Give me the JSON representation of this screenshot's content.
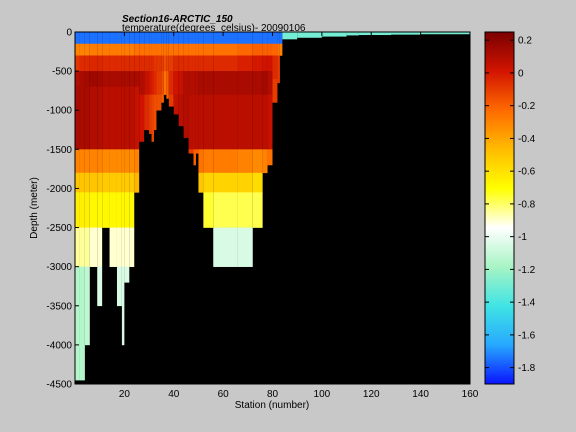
{
  "chart_data": {
    "type": "heatmap",
    "title": "Section16-ARCTIC_150",
    "subtitle": "temperature(degrees_celsius)- 20090106",
    "xlabel": "Station (number)",
    "ylabel": "Depth (meter)",
    "xlim": [
      0,
      160
    ],
    "ylim": [
      -4500,
      0
    ],
    "x_ticks": [
      20,
      40,
      60,
      80,
      100,
      120,
      140,
      160
    ],
    "y_ticks": [
      0,
      -500,
      -1000,
      -1500,
      -2000,
      -2500,
      -3000,
      -3500,
      -4000,
      -4500
    ],
    "colorbar": {
      "clim": [
        -1.9,
        0.25
      ],
      "ticks": [
        0.2,
        0,
        -0.2,
        -0.4,
        -0.6,
        -0.8,
        -1,
        -1.2,
        -1.4,
        -1.6,
        -1.8
      ],
      "colormap": "jet_custom",
      "stops": [
        "#0a14ff",
        "#27a8ff",
        "#40e4e4",
        "#a8f4c4",
        "#ffffff",
        "#ffff00",
        "#ffbc00",
        "#ff6a00",
        "#d21400",
        "#7a0000"
      ]
    },
    "bottom_color": "#000000",
    "surface_layer": {
      "depth_to": -150,
      "value": -1.75,
      "east_value": -1.3
    },
    "columns": [
      {
        "x": [
          0,
          2
        ],
        "bottom": -4450,
        "layers": [
          [
            -300,
            -0.3
          ],
          [
            -500,
            -0.08
          ],
          [
            -700,
            0.1
          ],
          [
            -1500,
            0.12
          ],
          [
            -1800,
            -0.3
          ],
          [
            -2050,
            -0.5
          ],
          [
            -2500,
            -0.65
          ],
          [
            -3000,
            -0.85
          ],
          [
            -4450,
            -1.15
          ]
        ]
      },
      {
        "x": [
          2,
          4
        ],
        "bottom": -4450,
        "layers": [
          [
            -300,
            -0.3
          ],
          [
            -500,
            -0.05
          ],
          [
            -700,
            0.12
          ],
          [
            -1500,
            0.12
          ],
          [
            -1800,
            -0.3
          ],
          [
            -2050,
            -0.5
          ],
          [
            -2500,
            -0.65
          ],
          [
            -3000,
            -0.85
          ],
          [
            -4450,
            -1.15
          ]
        ]
      },
      {
        "x": [
          4,
          6
        ],
        "bottom": -4000,
        "layers": [
          [
            -300,
            -0.3
          ],
          [
            -500,
            -0.05
          ],
          [
            -700,
            0.14
          ],
          [
            -1500,
            0.12
          ],
          [
            -1800,
            -0.3
          ],
          [
            -2050,
            -0.5
          ],
          [
            -2500,
            -0.65
          ],
          [
            -3000,
            -0.85
          ],
          [
            -4000,
            -1.12
          ]
        ]
      },
      {
        "x": [
          6,
          9
        ],
        "bottom": -3000,
        "layers": [
          [
            -300,
            -0.28
          ],
          [
            -500,
            -0.04
          ],
          [
            -700,
            0.15
          ],
          [
            -1500,
            0.1
          ],
          [
            -1800,
            -0.3
          ],
          [
            -2050,
            -0.5
          ],
          [
            -2500,
            -0.68
          ],
          [
            -3000,
            -0.9
          ]
        ]
      },
      {
        "x": [
          9,
          11
        ],
        "bottom": -3500,
        "layers": [
          [
            -300,
            -0.28
          ],
          [
            -500,
            -0.04
          ],
          [
            -700,
            0.14
          ],
          [
            -1500,
            0.1
          ],
          [
            -1800,
            -0.3
          ],
          [
            -2050,
            -0.5
          ],
          [
            -2500,
            -0.68
          ],
          [
            -3000,
            -0.9
          ],
          [
            -3500,
            -1.05
          ]
        ]
      },
      {
        "x": [
          11,
          14
        ],
        "bottom": -2500,
        "layers": [
          [
            -300,
            -0.28
          ],
          [
            -500,
            -0.05
          ],
          [
            -700,
            0.12
          ],
          [
            -1500,
            0.08
          ],
          [
            -1800,
            -0.32
          ],
          [
            -2050,
            -0.52
          ],
          [
            -2500,
            -0.68
          ]
        ]
      },
      {
        "x": [
          14,
          17
        ],
        "bottom": -3000,
        "layers": [
          [
            -300,
            -0.28
          ],
          [
            -500,
            -0.05
          ],
          [
            -700,
            0.12
          ],
          [
            -1500,
            0.08
          ],
          [
            -1800,
            -0.32
          ],
          [
            -2050,
            -0.52
          ],
          [
            -2500,
            -0.68
          ],
          [
            -3000,
            -0.9
          ]
        ]
      },
      {
        "x": [
          17,
          19
        ],
        "bottom": -3500,
        "layers": [
          [
            -300,
            -0.28
          ],
          [
            -500,
            -0.05
          ],
          [
            -700,
            0.12
          ],
          [
            -1500,
            0.08
          ],
          [
            -1800,
            -0.32
          ],
          [
            -2050,
            -0.52
          ],
          [
            -2500,
            -0.68
          ],
          [
            -3000,
            -0.9
          ],
          [
            -3500,
            -1.05
          ]
        ]
      },
      {
        "x": [
          19,
          20
        ],
        "bottom": -4000,
        "layers": [
          [
            -300,
            -0.28
          ],
          [
            -500,
            -0.05
          ],
          [
            -700,
            0.12
          ],
          [
            -1500,
            0.08
          ],
          [
            -1800,
            -0.32
          ],
          [
            -2050,
            -0.52
          ],
          [
            -2500,
            -0.68
          ],
          [
            -3000,
            -0.9
          ],
          [
            -4000,
            -1.05
          ]
        ]
      },
      {
        "x": [
          20,
          22
        ],
        "bottom": -3200,
        "layers": [
          [
            -300,
            -0.28
          ],
          [
            -500,
            -0.05
          ],
          [
            -700,
            0.12
          ],
          [
            -1500,
            0.08
          ],
          [
            -1800,
            -0.32
          ],
          [
            -2050,
            -0.52
          ],
          [
            -2500,
            -0.68
          ],
          [
            -3000,
            -0.9
          ],
          [
            -3200,
            -1.05
          ]
        ]
      },
      {
        "x": [
          22,
          24
        ],
        "bottom": -3000,
        "layers": [
          [
            -300,
            -0.28
          ],
          [
            -500,
            -0.05
          ],
          [
            -700,
            0.12
          ],
          [
            -1500,
            0.08
          ],
          [
            -1800,
            -0.32
          ],
          [
            -2050,
            -0.52
          ],
          [
            -2500,
            -0.68
          ],
          [
            -3000,
            -0.9
          ]
        ]
      },
      {
        "x": [
          24,
          26
        ],
        "bottom": -2050,
        "layers": [
          [
            -300,
            -0.25
          ],
          [
            -500,
            -0.05
          ],
          [
            -700,
            0.12
          ],
          [
            -1500,
            0.05
          ],
          [
            -1800,
            -0.3
          ],
          [
            -2050,
            -0.45
          ]
        ]
      },
      {
        "x": [
          26,
          28
        ],
        "bottom": -1400,
        "layers": [
          [
            -300,
            -0.25
          ],
          [
            -500,
            -0.05
          ],
          [
            -800,
            0.1
          ],
          [
            -1400,
            0.02
          ]
        ]
      },
      {
        "x": [
          28,
          30
        ],
        "bottom": -1250,
        "layers": [
          [
            -300,
            -0.25
          ],
          [
            -500,
            -0.05
          ],
          [
            -800,
            0.05
          ],
          [
            -1250,
            -0.05
          ]
        ]
      },
      {
        "x": [
          30,
          31
        ],
        "bottom": -1300,
        "layers": [
          [
            -300,
            -0.25
          ],
          [
            -500,
            -0.05
          ],
          [
            -800,
            0.0
          ],
          [
            -1300,
            -0.1
          ]
        ]
      },
      {
        "x": [
          31,
          32
        ],
        "bottom": -1400,
        "layers": [
          [
            -300,
            -0.25
          ],
          [
            -500,
            -0.05
          ],
          [
            -800,
            -0.02
          ],
          [
            -1400,
            -0.12
          ]
        ]
      },
      {
        "x": [
          32,
          33
        ],
        "bottom": -1250,
        "layers": [
          [
            -300,
            -0.25
          ],
          [
            -500,
            -0.08
          ],
          [
            -800,
            -0.05
          ],
          [
            -1250,
            -0.15
          ]
        ]
      },
      {
        "x": [
          33,
          35
        ],
        "bottom": -1000,
        "layers": [
          [
            -300,
            -0.25
          ],
          [
            -500,
            -0.08
          ],
          [
            -800,
            -0.1
          ],
          [
            -1000,
            -0.15
          ]
        ]
      },
      {
        "x": [
          35,
          36
        ],
        "bottom": -900,
        "layers": [
          [
            -300,
            -0.25
          ],
          [
            -500,
            -0.1
          ],
          [
            -800,
            -0.15
          ],
          [
            -900,
            -0.2
          ]
        ]
      },
      {
        "x": [
          36,
          37
        ],
        "bottom": -800,
        "layers": [
          [
            -300,
            -0.25
          ],
          [
            -500,
            -0.15
          ],
          [
            -800,
            -0.25
          ]
        ]
      },
      {
        "x": [
          37,
          38
        ],
        "bottom": -850,
        "layers": [
          [
            -300,
            -0.25
          ],
          [
            -500,
            -0.12
          ],
          [
            -850,
            -0.2
          ]
        ]
      },
      {
        "x": [
          38,
          40
        ],
        "bottom": -950,
        "layers": [
          [
            -300,
            -0.25
          ],
          [
            -500,
            -0.1
          ],
          [
            -800,
            -0.05
          ],
          [
            -950,
            -0.1
          ]
        ]
      },
      {
        "x": [
          40,
          42
        ],
        "bottom": -1050,
        "layers": [
          [
            -300,
            -0.25
          ],
          [
            -500,
            -0.05
          ],
          [
            -800,
            0.02
          ],
          [
            -1050,
            0.05
          ]
        ]
      },
      {
        "x": [
          42,
          44
        ],
        "bottom": -1200,
        "layers": [
          [
            -300,
            -0.25
          ],
          [
            -500,
            -0.05
          ],
          [
            -800,
            0.05
          ],
          [
            -1200,
            0.08
          ]
        ]
      },
      {
        "x": [
          44,
          46
        ],
        "bottom": -1350,
        "layers": [
          [
            -300,
            -0.25
          ],
          [
            -500,
            -0.05
          ],
          [
            -800,
            0.1
          ],
          [
            -1350,
            0.1
          ]
        ]
      },
      {
        "x": [
          46,
          48
        ],
        "bottom": -1550,
        "layers": [
          [
            -300,
            -0.25
          ],
          [
            -500,
            -0.05
          ],
          [
            -800,
            0.1
          ],
          [
            -1500,
            0.08
          ],
          [
            -1550,
            -0.1
          ]
        ]
      },
      {
        "x": [
          48,
          49
        ],
        "bottom": -1700,
        "layers": [
          [
            -300,
            -0.25
          ],
          [
            -500,
            -0.05
          ],
          [
            -800,
            0.1
          ],
          [
            -1500,
            0.08
          ],
          [
            -1700,
            -0.2
          ]
        ]
      },
      {
        "x": [
          49,
          50
        ],
        "bottom": -1550,
        "layers": [
          [
            -300,
            -0.25
          ],
          [
            -500,
            -0.05
          ],
          [
            -800,
            0.1
          ],
          [
            -1500,
            0.08
          ],
          [
            -1550,
            -0.2
          ]
        ]
      },
      {
        "x": [
          50,
          52
        ],
        "bottom": -2050,
        "layers": [
          [
            -300,
            -0.25
          ],
          [
            -500,
            -0.05
          ],
          [
            -800,
            0.12
          ],
          [
            -1500,
            0.08
          ],
          [
            -1800,
            -0.25
          ],
          [
            -2050,
            -0.5
          ]
        ]
      },
      {
        "x": [
          52,
          56
        ],
        "bottom": -2500,
        "layers": [
          [
            -300,
            -0.25
          ],
          [
            -500,
            -0.05
          ],
          [
            -800,
            0.12
          ],
          [
            -1500,
            0.08
          ],
          [
            -1800,
            -0.28
          ],
          [
            -2050,
            -0.55
          ],
          [
            -2500,
            -0.75
          ]
        ]
      },
      {
        "x": [
          56,
          66
        ],
        "bottom": -3000,
        "layers": [
          [
            -300,
            -0.25
          ],
          [
            -500,
            -0.05
          ],
          [
            -800,
            0.12
          ],
          [
            -1500,
            0.08
          ],
          [
            -1800,
            -0.28
          ],
          [
            -2050,
            -0.55
          ],
          [
            -2500,
            -0.78
          ],
          [
            -3000,
            -1.05
          ]
        ]
      },
      {
        "x": [
          66,
          72
        ],
        "bottom": -3000,
        "layers": [
          [
            -300,
            -0.22
          ],
          [
            -500,
            -0.02
          ],
          [
            -800,
            0.12
          ],
          [
            -1500,
            0.08
          ],
          [
            -1800,
            -0.3
          ],
          [
            -2050,
            -0.55
          ],
          [
            -2500,
            -0.78
          ],
          [
            -3000,
            -1.05
          ]
        ]
      },
      {
        "x": [
          72,
          76
        ],
        "bottom": -2500,
        "layers": [
          [
            -300,
            -0.2
          ],
          [
            -500,
            0.0
          ],
          [
            -800,
            0.12
          ],
          [
            -1500,
            0.08
          ],
          [
            -1800,
            -0.32
          ],
          [
            -2050,
            -0.58
          ],
          [
            -2500,
            -0.78
          ]
        ]
      },
      {
        "x": [
          76,
          78
        ],
        "bottom": -1800,
        "layers": [
          [
            -300,
            -0.2
          ],
          [
            -500,
            0.02
          ],
          [
            -800,
            0.14
          ],
          [
            -1500,
            0.08
          ],
          [
            -1800,
            -0.3
          ]
        ]
      },
      {
        "x": [
          78,
          80
        ],
        "bottom": -1700,
        "layers": [
          [
            -300,
            -0.2
          ],
          [
            -500,
            0.02
          ],
          [
            -800,
            0.1
          ],
          [
            -1500,
            0.05
          ],
          [
            -1700,
            -0.25
          ]
        ]
      },
      {
        "x": [
          80,
          82
        ],
        "bottom": -900,
        "layers": [
          [
            -300,
            -0.22
          ],
          [
            -600,
            -0.05
          ],
          [
            -900,
            -0.1
          ]
        ]
      },
      {
        "x": [
          82,
          83
        ],
        "bottom": -650,
        "layers": [
          [
            -300,
            -0.25
          ],
          [
            -650,
            -0.1
          ]
        ]
      },
      {
        "x": [
          83,
          84
        ],
        "bottom": -300,
        "layers": [
          [
            -300,
            -0.3
          ]
        ]
      },
      {
        "x": [
          84,
          90
        ],
        "bottom": -90,
        "layers": []
      },
      {
        "x": [
          90,
          100
        ],
        "bottom": -70,
        "layers": []
      },
      {
        "x": [
          100,
          110
        ],
        "bottom": -55,
        "layers": []
      },
      {
        "x": [
          110,
          115
        ],
        "bottom": -40,
        "layers": []
      },
      {
        "x": [
          115,
          128
        ],
        "bottom": -35,
        "layers": []
      },
      {
        "x": [
          128,
          140
        ],
        "bottom": -30,
        "layers": []
      },
      {
        "x": [
          140,
          160
        ],
        "bottom": -25,
        "layers": []
      }
    ]
  }
}
